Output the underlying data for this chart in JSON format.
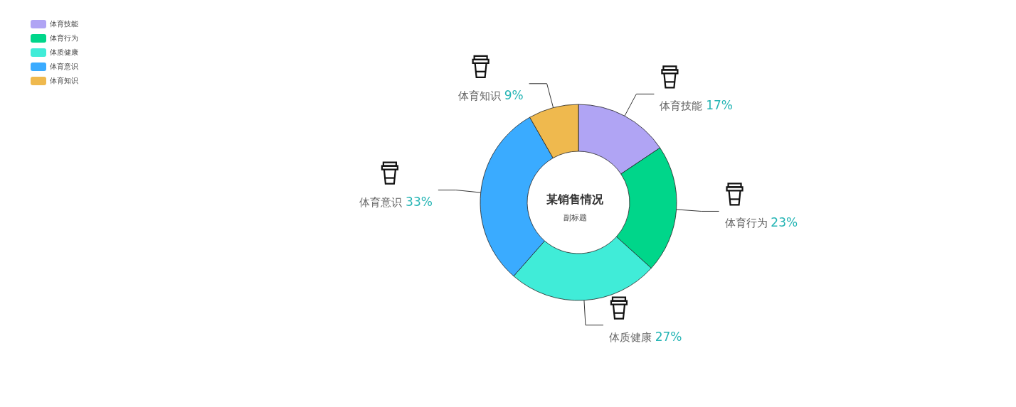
{
  "chart_data": {
    "type": "donut",
    "title": "某销售情况",
    "subtitle": "副标题",
    "categories": [
      "体育技能",
      "体育行为",
      "体质健康",
      "体育意识",
      "体育知识"
    ],
    "values": [
      17,
      23,
      27,
      33,
      9
    ],
    "value_labels": [
      "17%",
      "23%",
      "27%",
      "33%",
      "9%"
    ],
    "colors": [
      "#b0a4f4",
      "#00d68a",
      "#40ecd8",
      "#3aabff",
      "#efb94e"
    ],
    "legend": "top left"
  }
}
